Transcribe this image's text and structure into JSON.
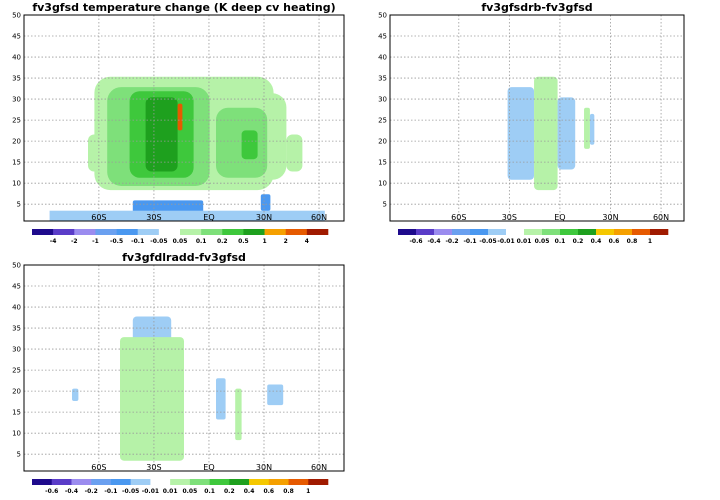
{
  "chart_data": [
    {
      "type": "heatmap",
      "title": "fv3gfsd  temperature change (K deep cv heating)",
      "y_ticks": [
        "5",
        "10",
        "15",
        "20",
        "25",
        "30",
        "35",
        "40",
        "45",
        "50"
      ],
      "x_ticks": [
        "60S",
        "30S",
        "EQ",
        "30N",
        "60N"
      ],
      "ylim": [
        1,
        50
      ],
      "grid": true,
      "colorbar": {
        "labels": [
          "-4",
          "-2",
          "-1",
          "-0.5",
          "-0.1",
          "-0.05",
          "0.05",
          "0.1",
          "0.2",
          "0.5",
          "1",
          "2",
          "4"
        ],
        "colors": [
          "#1e0a8c",
          "#5a3cc8",
          "#9b8cef",
          "#6aa0f0",
          "#4a98f0",
          "#9ecdf5",
          "#ffffff",
          "#b6f2a8",
          "#7ee07a",
          "#3ec83c",
          "#1ea01e",
          "#f5a000",
          "#e65a00",
          "#a01a00"
        ]
      }
    },
    {
      "type": "heatmap",
      "title": "fv3gfsdrb-fv3gfsd",
      "y_ticks": [
        "5",
        "10",
        "15",
        "20",
        "25",
        "30",
        "35",
        "40",
        "45",
        "50"
      ],
      "x_ticks": [
        "60S",
        "30S",
        "EQ",
        "30N",
        "60N"
      ],
      "ylim": [
        1,
        50
      ],
      "grid": true,
      "colorbar": {
        "labels": [
          "-0.6",
          "-0.4",
          "-0.2",
          "-0.1",
          "-0.05",
          "-0.01",
          "0.01",
          "0.05",
          "0.1",
          "0.2",
          "0.4",
          "0.6",
          "0.8",
          "1"
        ],
        "colors": [
          "#1e0a8c",
          "#5a3cc8",
          "#9b8cef",
          "#6aa0f0",
          "#4a98f0",
          "#9ecdf5",
          "#ffffff",
          "#b6f2a8",
          "#7ee07a",
          "#3ec83c",
          "#1ea01e",
          "#f5c800",
          "#f5a000",
          "#e65a00",
          "#a01a00"
        ]
      }
    },
    {
      "type": "heatmap",
      "title": "fv3gfdlradd-fv3gfsd",
      "y_ticks": [
        "5",
        "10",
        "15",
        "20",
        "25",
        "30",
        "35",
        "40",
        "45",
        "50"
      ],
      "x_ticks": [
        "60S",
        "30S",
        "EQ",
        "30N",
        "60N"
      ],
      "ylim": [
        1,
        50
      ],
      "grid": true,
      "colorbar": {
        "labels": [
          "-0.6",
          "-0.4",
          "-0.2",
          "-0.1",
          "-0.05",
          "-0.01",
          "0.01",
          "0.05",
          "0.1",
          "0.2",
          "0.4",
          "0.6",
          "0.8",
          "1"
        ],
        "colors": [
          "#1e0a8c",
          "#5a3cc8",
          "#9b8cef",
          "#6aa0f0",
          "#4a98f0",
          "#9ecdf5",
          "#ffffff",
          "#b6f2a8",
          "#7ee07a",
          "#3ec83c",
          "#1ea01e",
          "#f5c800",
          "#f5a000",
          "#e65a00",
          "#a01a00"
        ]
      }
    }
  ]
}
